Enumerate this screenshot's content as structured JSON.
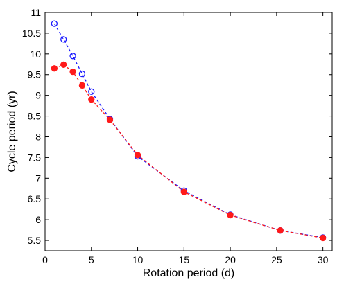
{
  "chart_data": {
    "type": "line",
    "xlabel": "Rotation period (d)",
    "ylabel": "Cycle period (yr)",
    "xlim": [
      0,
      31
    ],
    "ylim": [
      5.25,
      11
    ],
    "x_ticks": [
      0,
      5,
      10,
      15,
      20,
      25,
      30
    ],
    "y_ticks": [
      5.5,
      6,
      6.5,
      7,
      7.5,
      8,
      8.5,
      9,
      9.5,
      10,
      10.5,
      11
    ],
    "x_tick_labels": [
      "0",
      "5",
      "10",
      "15",
      "20",
      "25",
      "30"
    ],
    "y_tick_labels": [
      "5.5",
      "6",
      "6.5",
      "7",
      "7.5",
      "8",
      "8.5",
      "9",
      "9.5",
      "10",
      "10.5",
      "11"
    ],
    "grid": false,
    "legend": "none",
    "series": [
      {
        "marker": "open-circle",
        "line_style": "dashed",
        "color": "#1a1aff",
        "x": [
          1,
          2,
          3,
          4,
          5,
          7,
          10,
          15,
          20,
          25.4,
          30
        ],
        "y": [
          10.73,
          10.35,
          9.95,
          9.52,
          9.09,
          8.43,
          7.53,
          6.7,
          6.12,
          5.74,
          5.57
        ]
      },
      {
        "marker": "filled-circle",
        "line_style": "dashed",
        "color": "#ff1a1a",
        "x": [
          1,
          2,
          3,
          4,
          5,
          7,
          10,
          15,
          20,
          25.4,
          30
        ],
        "y": [
          9.65,
          9.74,
          9.57,
          9.24,
          8.9,
          8.41,
          7.56,
          6.67,
          6.11,
          5.74,
          5.56
        ]
      }
    ]
  }
}
